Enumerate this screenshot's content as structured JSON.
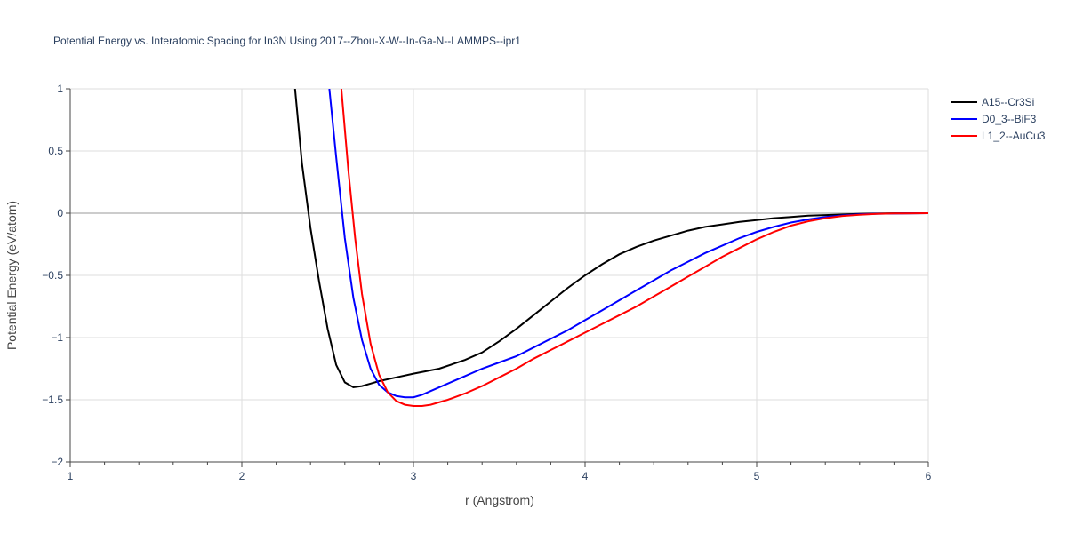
{
  "chart_data": {
    "type": "line",
    "title": "Potential Energy vs. Interatomic Spacing for In3N Using 2017--Zhou-X-W--In-Ga-N--LAMMPS--ipr1",
    "xlabel": "r (Angstrom)",
    "ylabel": "Potential Energy (eV/atom)",
    "xlim": [
      1,
      6
    ],
    "ylim": [
      -2,
      1
    ],
    "xticks": [
      1,
      2,
      3,
      4,
      5,
      6
    ],
    "yticks": [
      -2,
      -1.5,
      -1,
      -0.5,
      0,
      0.5,
      1
    ],
    "ytick_labels": [
      "−2",
      "−1.5",
      "−1",
      "−0.5",
      "0",
      "0.5",
      "1"
    ],
    "grid": true,
    "legend_position": "top-right",
    "series": [
      {
        "name": "A15--Cr3Si",
        "color": "#000000",
        "x": [
          2.31,
          2.35,
          2.4,
          2.45,
          2.5,
          2.55,
          2.6,
          2.65,
          2.7,
          2.75,
          2.8,
          2.9,
          3.0,
          3.15,
          3.3,
          3.4,
          3.5,
          3.6,
          3.7,
          3.8,
          3.9,
          4.0,
          4.1,
          4.2,
          4.3,
          4.4,
          4.5,
          4.6,
          4.7,
          4.8,
          4.9,
          5.0,
          5.1,
          5.2,
          5.3,
          5.4,
          5.5,
          5.6,
          5.7,
          5.8,
          6.0
        ],
        "y": [
          1.0,
          0.4,
          -0.12,
          -0.55,
          -0.93,
          -1.22,
          -1.36,
          -1.4,
          -1.39,
          -1.37,
          -1.35,
          -1.32,
          -1.29,
          -1.25,
          -1.18,
          -1.12,
          -1.03,
          -0.93,
          -0.82,
          -0.71,
          -0.6,
          -0.5,
          -0.41,
          -0.33,
          -0.27,
          -0.22,
          -0.18,
          -0.14,
          -0.11,
          -0.09,
          -0.07,
          -0.055,
          -0.04,
          -0.03,
          -0.02,
          -0.015,
          -0.01,
          -0.006,
          -0.003,
          -0.001,
          0.0
        ]
      },
      {
        "name": "D0_3--BiF3",
        "color": "#0000ff",
        "x": [
          2.51,
          2.55,
          2.6,
          2.65,
          2.7,
          2.75,
          2.8,
          2.85,
          2.9,
          2.95,
          3.0,
          3.05,
          3.1,
          3.2,
          3.3,
          3.4,
          3.5,
          3.6,
          3.7,
          3.8,
          3.9,
          4.0,
          4.1,
          4.2,
          4.3,
          4.4,
          4.5,
          4.6,
          4.7,
          4.8,
          4.9,
          5.0,
          5.1,
          5.2,
          5.3,
          5.4,
          5.5,
          5.6,
          5.7,
          6.0
        ],
        "y": [
          1.0,
          0.45,
          -0.2,
          -0.68,
          -1.02,
          -1.25,
          -1.38,
          -1.44,
          -1.47,
          -1.48,
          -1.48,
          -1.46,
          -1.43,
          -1.37,
          -1.31,
          -1.25,
          -1.2,
          -1.15,
          -1.08,
          -1.01,
          -0.94,
          -0.86,
          -0.78,
          -0.7,
          -0.62,
          -0.54,
          -0.46,
          -0.39,
          -0.32,
          -0.26,
          -0.2,
          -0.15,
          -0.11,
          -0.075,
          -0.05,
          -0.03,
          -0.018,
          -0.009,
          -0.004,
          0.0
        ]
      },
      {
        "name": "L1_2--AuCu3",
        "color": "#ff0000",
        "x": [
          2.58,
          2.62,
          2.66,
          2.7,
          2.75,
          2.8,
          2.85,
          2.9,
          2.95,
          3.0,
          3.05,
          3.1,
          3.2,
          3.3,
          3.4,
          3.5,
          3.6,
          3.7,
          3.8,
          3.9,
          4.0,
          4.1,
          4.2,
          4.3,
          4.4,
          4.5,
          4.6,
          4.7,
          4.8,
          4.9,
          5.0,
          5.1,
          5.2,
          5.3,
          5.4,
          5.5,
          5.6,
          5.7,
          5.8,
          6.0
        ],
        "y": [
          1.0,
          0.35,
          -0.2,
          -0.65,
          -1.05,
          -1.3,
          -1.44,
          -1.51,
          -1.54,
          -1.55,
          -1.55,
          -1.54,
          -1.5,
          -1.45,
          -1.39,
          -1.32,
          -1.25,
          -1.17,
          -1.1,
          -1.03,
          -0.96,
          -0.89,
          -0.82,
          -0.75,
          -0.67,
          -0.59,
          -0.51,
          -0.43,
          -0.35,
          -0.28,
          -0.21,
          -0.15,
          -0.1,
          -0.065,
          -0.04,
          -0.022,
          -0.012,
          -0.006,
          -0.002,
          0.0
        ]
      }
    ]
  }
}
